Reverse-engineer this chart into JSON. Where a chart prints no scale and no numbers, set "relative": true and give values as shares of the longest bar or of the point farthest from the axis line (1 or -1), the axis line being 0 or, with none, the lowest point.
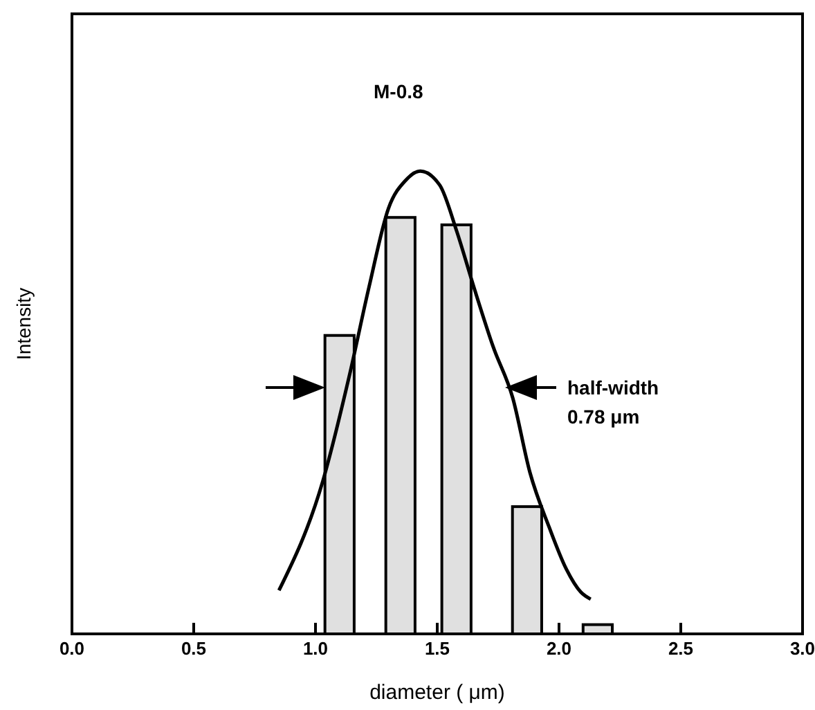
{
  "chart_data": {
    "type": "bar",
    "xlabel": "diameter ( μm)",
    "ylabel": "Intensity",
    "relative": true,
    "tick_labels": "x",
    "marker": "none",
    "x": [
      1.1,
      1.35,
      1.58,
      1.87,
      2.16
    ],
    "xlim": [
      0,
      3
    ],
    "xticks": [
      {
        "value": 0,
        "label": "0.0"
      },
      0.5,
      {
        "value": 1,
        "label": "1.0"
      },
      1.5,
      {
        "value": 2,
        "label": "2.0"
      },
      2.5,
      {
        "value": 3,
        "label": "3.0"
      }
    ],
    "annotations": [
      "M-0.8",
      "half-width 0.78 μm"
    ],
    "series": [
      {
        "color": "#e0e0e0",
        "values": [
          0.645,
          0.9,
          0.884,
          0.275,
          0.02
        ]
      },
      {
        "type": "line",
        "color": "#000000",
        "x": [
          0.85,
          1.03,
          1.14,
          1.22,
          1.3,
          1.37,
          1.43,
          1.51,
          1.58,
          1.65,
          1.73,
          1.81,
          1.88,
          1.96,
          2.03,
          2.09,
          2.13
        ],
        "values": [
          0.094,
          0.33,
          0.56,
          0.75,
          0.92,
          0.98,
          1.0,
          0.97,
          0.87,
          0.75,
          0.62,
          0.51,
          0.35,
          0.23,
          0.14,
          0.09,
          0.075
        ]
      }
    ]
  }
}
